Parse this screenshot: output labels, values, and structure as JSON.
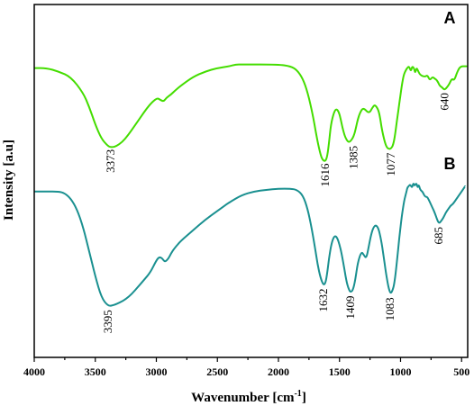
{
  "chart_data": {
    "type": "line",
    "xlabel": "Wavenumber [cm",
    "xlabel_sup": "-1",
    "xlabel_end": "]",
    "ylabel": "Intensity [a.u]",
    "xlim": [
      4000,
      450
    ],
    "x_ticks": [
      "4000",
      "3500",
      "3000",
      "2500",
      "2000",
      "1500",
      "1000",
      "500"
    ],
    "grid": false,
    "series": [
      {
        "name": "A",
        "color": "#44dd00",
        "x": [
          4000,
          3900,
          3800,
          3700,
          3600,
          3550,
          3500,
          3450,
          3400,
          3373,
          3330,
          3280,
          3230,
          3180,
          3130,
          3080,
          3030,
          2990,
          2970,
          2940,
          2920,
          2880,
          2850,
          2800,
          2700,
          2600,
          2500,
          2400,
          2350,
          2300,
          2000,
          1900,
          1850,
          1800,
          1760,
          1720,
          1690,
          1660,
          1640,
          1616,
          1600,
          1585,
          1570,
          1545,
          1525,
          1505,
          1490,
          1475,
          1455,
          1430,
          1410,
          1385,
          1365,
          1350,
          1330,
          1310,
          1290,
          1270,
          1250,
          1235,
          1215,
          1200,
          1180,
          1165,
          1150,
          1120,
          1095,
          1077,
          1060,
          1045,
          1030,
          1010,
          990,
          975,
          955,
          945,
          930,
          915,
          905,
          890,
          880,
          870,
          860,
          840,
          800,
          780,
          760,
          740,
          720,
          700,
          680,
          660,
          640,
          620,
          600,
          580,
          560,
          540,
          520,
          500,
          480,
          460
        ],
        "y": [
          82,
          82,
          81,
          79.5,
          75,
          71,
          66,
          62,
          60,
          59.5,
          59.8,
          61,
          63,
          65.5,
          68,
          70.5,
          72.5,
          73.5,
          73,
          72.5,
          73.5,
          74.5,
          75.5,
          77,
          79.5,
          81,
          82,
          82.5,
          83,
          83,
          83,
          82.5,
          81.5,
          79,
          75,
          69,
          63,
          58,
          56,
          55.5,
          57,
          61,
          66,
          69.5,
          70.5,
          69.5,
          67.5,
          65,
          62.5,
          61,
          61.2,
          62.5,
          65,
          67.5,
          69.5,
          70.5,
          70.3,
          69.5,
          69.5,
          70.5,
          71.5,
          71.2,
          70,
          67.5,
          64,
          59.8,
          59,
          59.2,
          60.2,
          63,
          67,
          72,
          77,
          80,
          81.5,
          82,
          82.5,
          81,
          82.5,
          82,
          80.5,
          82,
          81.5,
          80,
          79.5,
          80,
          78.5,
          79.5,
          79,
          78.5,
          77,
          76.5,
          75.8,
          76.5,
          77.5,
          79,
          78.5,
          80.5,
          82,
          82.5,
          82.5,
          82.5
        ]
      },
      {
        "name": "B",
        "color": "#1a9090",
        "x": [
          4000,
          3900,
          3800,
          3750,
          3700,
          3650,
          3600,
          3550,
          3500,
          3450,
          3395,
          3350,
          3300,
          3250,
          3200,
          3150,
          3100,
          3050,
          3000,
          2975,
          2950,
          2930,
          2900,
          2880,
          2850,
          2800,
          2700,
          2600,
          2500,
          2400,
          2300,
          2200,
          2100,
          2000,
          1900,
          1850,
          1800,
          1760,
          1730,
          1700,
          1680,
          1655,
          1632,
          1615,
          1600,
          1580,
          1560,
          1540,
          1520,
          1500,
          1480,
          1460,
          1440,
          1420,
          1409,
          1390,
          1370,
          1350,
          1320,
          1300,
          1280,
          1260,
          1240,
          1220,
          1200,
          1180,
          1160,
          1140,
          1120,
          1100,
          1083,
          1065,
          1050,
          1030,
          1010,
          990,
          970,
          955,
          945,
          935,
          920,
          905,
          895,
          885,
          870,
          860,
          850,
          840,
          820,
          800,
          780,
          760,
          740,
          720,
          700,
          685,
          670,
          650,
          630,
          610,
          590,
          570,
          550,
          530,
          510,
          490,
          470
        ],
        "y": [
          47,
          47,
          47,
          46.5,
          45,
          42,
          37,
          30,
          23,
          17,
          14.5,
          14.8,
          15.5,
          16.5,
          18,
          20,
          22,
          24,
          27.5,
          28.5,
          28,
          27,
          28,
          29.5,
          31,
          33,
          36,
          39,
          41.5,
          44,
          46,
          47,
          47.5,
          47.8,
          47.8,
          47.5,
          46,
          42,
          37,
          31,
          26.5,
          22.5,
          20.5,
          21,
          24,
          29.5,
          33,
          34.5,
          34,
          32,
          29,
          25,
          21,
          19,
          18.5,
          19,
          22,
          27,
          30,
          29,
          28,
          31.5,
          35,
          37,
          37.5,
          36.5,
          33.5,
          29,
          24,
          20,
          18,
          19,
          21,
          27,
          34,
          40,
          44.5,
          46.5,
          48,
          48.5,
          49,
          48,
          49.5,
          48.5,
          49.5,
          48,
          49,
          47.5,
          47,
          45.5,
          45.5,
          44,
          42.5,
          41,
          39,
          38,
          38.5,
          39.5,
          41,
          42,
          43,
          43.5,
          44.5,
          45.5,
          46.5,
          47.5,
          48.5
        ]
      }
    ],
    "annotations": [
      {
        "text": "3373",
        "x": 3373,
        "y": 60
      },
      {
        "text": "1616",
        "x": 1616,
        "y": 56
      },
      {
        "text": "1385",
        "x": 1385,
        "y": 61
      },
      {
        "text": "1077",
        "x": 1077,
        "y": 59
      },
      {
        "text": "640",
        "x": 640,
        "y": 76
      },
      {
        "text": "3395",
        "x": 3395,
        "y": 14.5
      },
      {
        "text": "1632",
        "x": 1632,
        "y": 20.5
      },
      {
        "text": "1409",
        "x": 1409,
        "y": 18.5
      },
      {
        "text": "1083",
        "x": 1083,
        "y": 18
      },
      {
        "text": "685",
        "x": 685,
        "y": 38
      }
    ],
    "series_labels": [
      "A",
      "B"
    ]
  }
}
